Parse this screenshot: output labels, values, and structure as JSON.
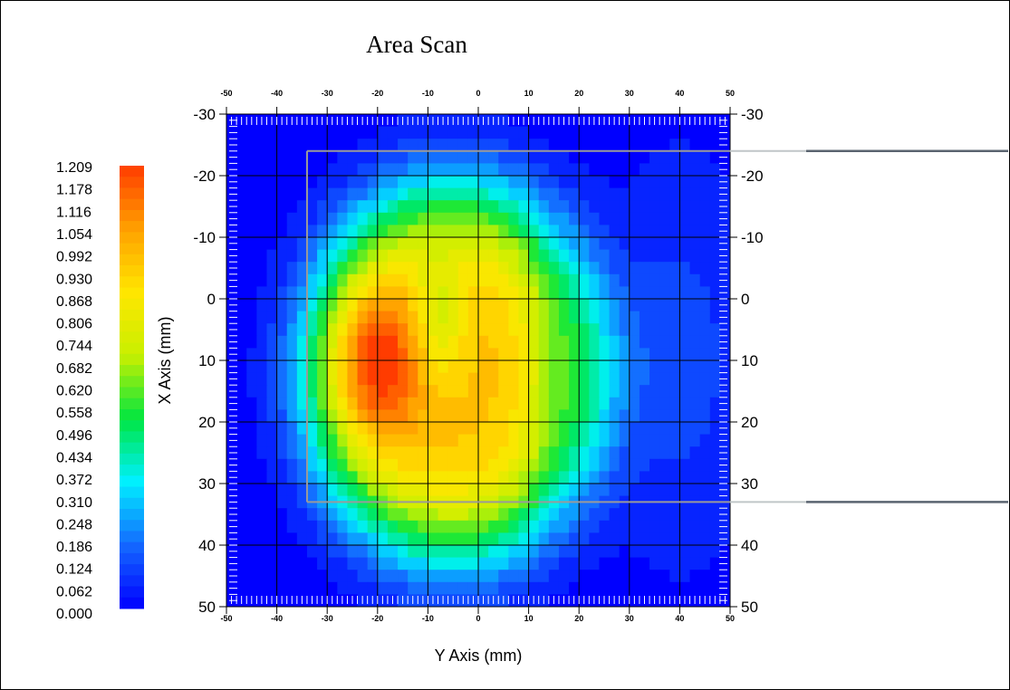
{
  "chart_data": {
    "type": "heatmap",
    "title": "Area Scan",
    "xlabel": "Y Axis (mm)",
    "ylabel": "X Axis (mm)",
    "x_range": [
      -50,
      50
    ],
    "y_range": [
      -30,
      50
    ],
    "x_ticks": [
      "-50",
      "-40",
      "-30",
      "-20",
      "-10",
      "0",
      "10",
      "20",
      "30",
      "40",
      "50"
    ],
    "y_ticks": [
      "-30",
      "-20",
      "-10",
      "0",
      "10",
      "20",
      "30",
      "40",
      "50"
    ],
    "grid": true,
    "colorbar": {
      "labels": [
        "1.209",
        "1.178",
        "1.116",
        "1.054",
        "0.992",
        "0.930",
        "0.868",
        "0.806",
        "0.744",
        "0.682",
        "0.620",
        "0.558",
        "0.496",
        "0.434",
        "0.372",
        "0.310",
        "0.248",
        "0.186",
        "0.124",
        "0.062",
        "0.000"
      ],
      "min": 0.0,
      "max": 1.209,
      "colors": [
        "#0000ff",
        "#1468ff",
        "#00f0ff",
        "#00e640",
        "#c8f000",
        "#ffe600",
        "#ffa000",
        "#ff3c00"
      ]
    },
    "hotspots": [
      {
        "x": -20,
        "y": 10,
        "value": 1.209
      },
      {
        "x": 0,
        "y": 20,
        "value": 0.93
      },
      {
        "x": -10,
        "y": 0,
        "value": 0.62
      }
    ],
    "overlay_box": {
      "x_range": [
        -34,
        50
      ],
      "y_range": [
        -24,
        33
      ]
    }
  }
}
